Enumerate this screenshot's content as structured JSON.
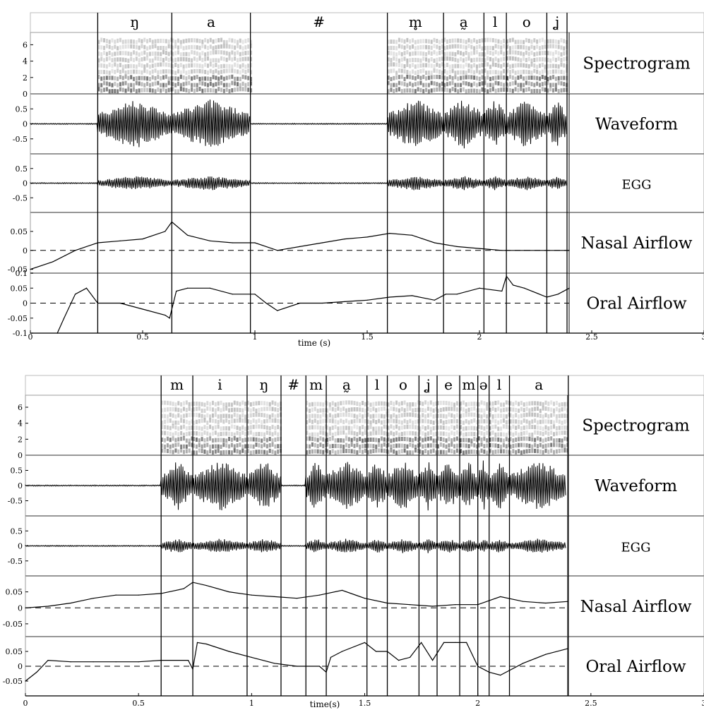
{
  "chart_data": [
    {
      "type": "line",
      "segments": [
        {
          "label": "ŋ",
          "start": 0.3,
          "end": 0.63
        },
        {
          "label": "a",
          "start": 0.63,
          "end": 0.98
        },
        {
          "label": "#",
          "start": 0.98,
          "end": 1.59
        },
        {
          "label": "m̥",
          "start": 1.59,
          "end": 1.84
        },
        {
          "label": "a̰",
          "start": 1.84,
          "end": 2.02
        },
        {
          "label": "l",
          "start": 2.02,
          "end": 2.12
        },
        {
          "label": "o",
          "start": 2.12,
          "end": 2.3
        },
        {
          "label": "ʝ",
          "start": 2.3,
          "end": 2.39
        }
      ],
      "panels": [
        {
          "name": "Spectrogram",
          "yticks": [
            "6",
            "4",
            "2",
            "0"
          ],
          "ylim": [
            0,
            7.5
          ]
        },
        {
          "name": "Waveform",
          "yticks": [
            "0.5",
            "0",
            "-0.5"
          ],
          "ylim": [
            -1,
            1
          ]
        },
        {
          "name": "EGG",
          "yticks": [
            "0.5",
            "0",
            "-0.5"
          ],
          "ylim": [
            -1,
            1
          ]
        },
        {
          "name": "Nasal Airflow",
          "yticks": [
            "0.05",
            "0",
            "-0.05"
          ],
          "ylim": [
            -0.06,
            0.1
          ],
          "x": [
            0,
            0.1,
            0.2,
            0.3,
            0.4,
            0.5,
            0.6,
            0.63,
            0.7,
            0.8,
            0.9,
            1.0,
            1.1,
            1.2,
            1.3,
            1.4,
            1.5,
            1.6,
            1.7,
            1.8,
            1.9,
            2.0,
            2.1,
            2.2,
            2.3,
            2.4
          ],
          "values": [
            -0.05,
            -0.03,
            0.0,
            0.02,
            0.025,
            0.03,
            0.05,
            0.075,
            0.04,
            0.025,
            0.02,
            0.02,
            0.0,
            0.01,
            0.02,
            0.03,
            0.035,
            0.045,
            0.04,
            0.02,
            0.01,
            0.005,
            0.0,
            0.0,
            0.0,
            0.0
          ]
        },
        {
          "name": "Oral Airflow",
          "yticks": [
            "0.1",
            "0.05",
            "0",
            "-0.05",
            "-0.1"
          ],
          "ylim": [
            -0.1,
            0.1
          ],
          "x": [
            0.12,
            0.15,
            0.2,
            0.25,
            0.3,
            0.4,
            0.5,
            0.6,
            0.62,
            0.65,
            0.7,
            0.8,
            0.9,
            1.0,
            1.05,
            1.1,
            1.2,
            1.3,
            1.4,
            1.5,
            1.6,
            1.7,
            1.8,
            1.85,
            1.9,
            2.0,
            2.1,
            2.12,
            2.15,
            2.2,
            2.3,
            2.35,
            2.4
          ],
          "values": [
            -0.1,
            -0.05,
            0.03,
            0.05,
            0.0,
            0.0,
            -0.02,
            -0.04,
            -0.05,
            0.04,
            0.05,
            0.05,
            0.03,
            0.03,
            0.0,
            -0.025,
            0.0,
            0.0,
            0.005,
            0.01,
            0.02,
            0.025,
            0.01,
            0.03,
            0.03,
            0.05,
            0.04,
            0.09,
            0.06,
            0.05,
            0.02,
            0.03,
            0.05
          ]
        }
      ],
      "xticks": [
        "0",
        "0.5",
        "1",
        "1.5",
        "2",
        "2.5",
        "3"
      ],
      "xlim": [
        0,
        3
      ],
      "xlabel": "time (s)"
    },
    {
      "type": "line",
      "segments": [
        {
          "label": "m",
          "start": 0.6,
          "end": 0.74
        },
        {
          "label": "i",
          "start": 0.74,
          "end": 0.98
        },
        {
          "label": "ŋ",
          "start": 0.98,
          "end": 1.13
        },
        {
          "label": "#",
          "start": 1.13,
          "end": 1.24
        },
        {
          "label": "m",
          "start": 1.24,
          "end": 1.33
        },
        {
          "label": "a̰",
          "start": 1.33,
          "end": 1.51
        },
        {
          "label": "l",
          "start": 1.51,
          "end": 1.6
        },
        {
          "label": "o",
          "start": 1.6,
          "end": 1.74
        },
        {
          "label": "ʝ",
          "start": 1.74,
          "end": 1.82
        },
        {
          "label": "e",
          "start": 1.82,
          "end": 1.92
        },
        {
          "label": "m",
          "start": 1.92,
          "end": 2.0
        },
        {
          "label": "ə",
          "start": 2.0,
          "end": 2.05
        },
        {
          "label": "l",
          "start": 2.05,
          "end": 2.14
        },
        {
          "label": "a",
          "start": 2.14,
          "end": 2.4
        }
      ],
      "panels": [
        {
          "name": "Spectrogram",
          "yticks": [
            "6",
            "4",
            "2",
            "0"
          ],
          "ylim": [
            0,
            7.5
          ]
        },
        {
          "name": "Waveform",
          "yticks": [
            "0.5",
            "0",
            "-0.5"
          ],
          "ylim": [
            -1,
            1
          ]
        },
        {
          "name": "EGG",
          "yticks": [
            "0.5",
            "0",
            "-0.5"
          ],
          "ylim": [
            -1,
            1
          ]
        },
        {
          "name": "Nasal Airflow",
          "yticks": [
            "0.05",
            "0",
            "-0.05"
          ],
          "ylim": [
            -0.09,
            0.1
          ],
          "x": [
            0,
            0.1,
            0.2,
            0.3,
            0.4,
            0.5,
            0.6,
            0.7,
            0.74,
            0.8,
            0.9,
            1.0,
            1.1,
            1.2,
            1.3,
            1.4,
            1.5,
            1.6,
            1.7,
            1.8,
            1.9,
            2.0,
            2.1,
            2.2,
            2.3,
            2.4
          ],
          "values": [
            0.0,
            0.005,
            0.015,
            0.03,
            0.04,
            0.04,
            0.045,
            0.06,
            0.08,
            0.07,
            0.05,
            0.04,
            0.035,
            0.03,
            0.04,
            0.055,
            0.03,
            0.015,
            0.01,
            0.005,
            0.01,
            0.01,
            0.035,
            0.02,
            0.015,
            0.02
          ]
        },
        {
          "name": "Oral Airflow",
          "yticks": [
            "0.05",
            "0",
            "-0.05"
          ],
          "ylim": [
            -0.1,
            0.1
          ],
          "x": [
            0,
            0.05,
            0.1,
            0.2,
            0.3,
            0.4,
            0.5,
            0.6,
            0.72,
            0.74,
            0.76,
            0.8,
            0.9,
            1.0,
            1.1,
            1.2,
            1.3,
            1.33,
            1.35,
            1.4,
            1.5,
            1.55,
            1.6,
            1.65,
            1.7,
            1.75,
            1.8,
            1.85,
            1.9,
            1.95,
            2.0,
            2.05,
            2.1,
            2.2,
            2.3,
            2.4
          ],
          "values": [
            -0.05,
            -0.02,
            0.02,
            0.015,
            0.015,
            0.015,
            0.015,
            0.02,
            0.02,
            -0.01,
            0.08,
            0.075,
            0.05,
            0.03,
            0.01,
            0.0,
            0.0,
            -0.02,
            0.03,
            0.05,
            0.08,
            0.05,
            0.05,
            0.02,
            0.03,
            0.08,
            0.02,
            0.08,
            0.08,
            0.08,
            0.0,
            -0.02,
            -0.03,
            0.01,
            0.04,
            0.06
          ]
        }
      ],
      "xticks": [
        "0",
        "0.5",
        "1",
        "1.5",
        "2",
        "2.5",
        "3"
      ],
      "xlim": [
        0,
        3
      ],
      "xlabel": "time(s)"
    }
  ]
}
